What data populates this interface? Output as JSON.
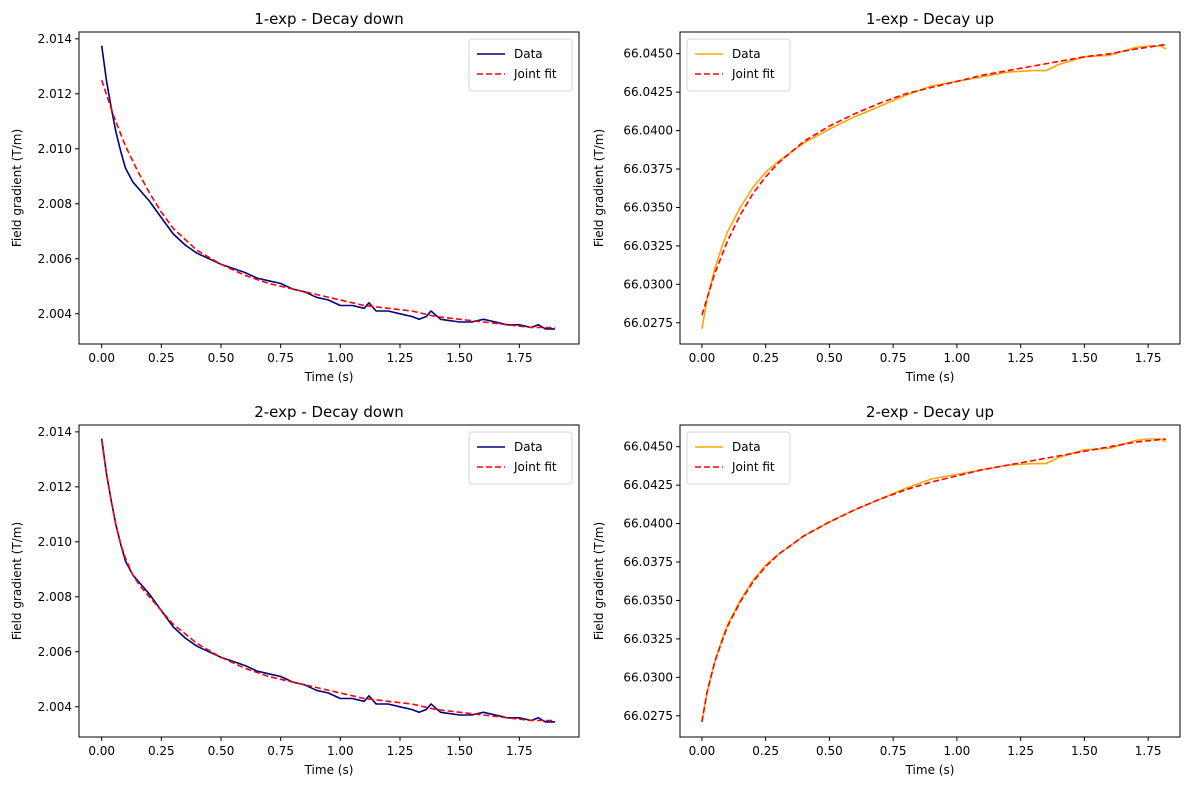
{
  "chart_data": [
    {
      "type": "line",
      "title": "1-exp - Decay down",
      "xlabel": "Time (s)",
      "ylabel": "Field gradient (T/m)",
      "xlim": [
        -0.095,
        2.0
      ],
      "ylim": [
        2.0029,
        2.01425
      ],
      "xticks": [
        "0.00",
        "0.25",
        "0.50",
        "0.75",
        "1.00",
        "1.25",
        "1.50",
        "1.75"
      ],
      "yticks": [
        "2.004",
        "2.006",
        "2.008",
        "2.010",
        "2.012",
        "2.014"
      ],
      "legend": "upper right",
      "series": [
        {
          "name": "Data",
          "color": "#000080",
          "style": "solid",
          "x": [
            0,
            0.02,
            0.04,
            0.06,
            0.08,
            0.1,
            0.13,
            0.16,
            0.2,
            0.25,
            0.3,
            0.35,
            0.4,
            0.45,
            0.5,
            0.55,
            0.6,
            0.65,
            0.7,
            0.75,
            0.8,
            0.85,
            0.9,
            0.95,
            1.0,
            1.05,
            1.1,
            1.12,
            1.15,
            1.2,
            1.25,
            1.3,
            1.33,
            1.36,
            1.38,
            1.42,
            1.5,
            1.55,
            1.6,
            1.65,
            1.7,
            1.75,
            1.8,
            1.83,
            1.86,
            1.9
          ],
          "y": [
            2.01375,
            2.0125,
            2.0115,
            2.0106,
            2.0099,
            2.0093,
            2.0088,
            2.0085,
            2.0081,
            2.0075,
            2.0069,
            2.0065,
            2.0062,
            2.006,
            2.0058,
            2.00565,
            2.0055,
            2.0053,
            2.0052,
            2.0051,
            2.0049,
            2.0048,
            2.0046,
            2.0045,
            2.0043,
            2.0043,
            2.0042,
            2.0044,
            2.0041,
            2.0041,
            2.004,
            2.0039,
            2.0038,
            2.0039,
            2.0041,
            2.0038,
            2.0037,
            2.0037,
            2.0038,
            2.0037,
            2.0036,
            2.0036,
            2.0035,
            2.0036,
            2.00345,
            2.00345
          ]
        },
        {
          "name": "Joint fit",
          "color": "#ff0000",
          "style": "dashed",
          "x": [
            0,
            0.05,
            0.1,
            0.15,
            0.2,
            0.25,
            0.3,
            0.4,
            0.5,
            0.6,
            0.7,
            0.8,
            0.9,
            1.0,
            1.1,
            1.2,
            1.3,
            1.4,
            1.5,
            1.6,
            1.7,
            1.8,
            1.9
          ],
          "y": [
            2.0125,
            2.0112,
            2.0101,
            2.0092,
            2.0084,
            2.0077,
            2.0071,
            2.0063,
            2.0058,
            2.0054,
            2.0051,
            2.0049,
            2.0047,
            2.0045,
            2.0043,
            2.0042,
            2.0041,
            2.0039,
            2.0038,
            2.0037,
            2.0036,
            2.0035,
            2.0035
          ]
        }
      ]
    },
    {
      "type": "line",
      "title": "1-exp - Decay up",
      "xlabel": "Time (s)",
      "ylabel": "Field gradient (T/m)",
      "xlim": [
        -0.086,
        1.875
      ],
      "ylim": [
        66.02612,
        66.04641
      ],
      "xticks": [
        "0.00",
        "0.25",
        "0.50",
        "0.75",
        "1.00",
        "1.25",
        "1.50",
        "1.75"
      ],
      "yticks": [
        "66.0275",
        "66.0300",
        "66.0325",
        "66.0350",
        "66.0375",
        "66.0400",
        "66.0425",
        "66.0450"
      ],
      "legend": "upper left",
      "series": [
        {
          "name": "Data",
          "color": "#ffa500",
          "style": "solid",
          "x": [
            0,
            0.02,
            0.05,
            0.08,
            0.1,
            0.15,
            0.2,
            0.25,
            0.3,
            0.35,
            0.4,
            0.5,
            0.6,
            0.7,
            0.8,
            0.9,
            1.0,
            1.1,
            1.2,
            1.3,
            1.35,
            1.4,
            1.5,
            1.6,
            1.7,
            1.75,
            1.8,
            1.82
          ],
          "y": [
            66.0271,
            66.029,
            66.031,
            66.0325,
            66.0334,
            66.035,
            66.0363,
            66.0373,
            66.038,
            66.0386,
            66.0392,
            66.0401,
            66.0409,
            66.0416,
            66.0423,
            66.0429,
            66.0432,
            66.0435,
            66.0438,
            66.0439,
            66.0439,
            66.0443,
            66.0448,
            66.0449,
            66.0454,
            66.0455,
            66.0455,
            66.0453
          ]
        },
        {
          "name": "Joint fit",
          "color": "#ff0000",
          "style": "dashed",
          "x": [
            0,
            0.05,
            0.1,
            0.15,
            0.2,
            0.25,
            0.3,
            0.4,
            0.5,
            0.6,
            0.7,
            0.8,
            0.9,
            1.0,
            1.1,
            1.2,
            1.3,
            1.4,
            1.5,
            1.6,
            1.7,
            1.82
          ],
          "y": [
            66.028,
            66.0307,
            66.0328,
            66.0345,
            66.0359,
            66.037,
            66.0379,
            66.0393,
            66.0403,
            66.0411,
            66.0418,
            66.0424,
            66.0428,
            66.0432,
            66.0436,
            66.0439,
            66.0442,
            66.0445,
            66.0448,
            66.045,
            66.0453,
            66.0456
          ]
        }
      ]
    },
    {
      "type": "line",
      "title": "2-exp - Decay down",
      "xlabel": "Time (s)",
      "ylabel": "Field gradient (T/m)",
      "xlim": [
        -0.095,
        2.0
      ],
      "ylim": [
        2.0029,
        2.01425
      ],
      "xticks": [
        "0.00",
        "0.25",
        "0.50",
        "0.75",
        "1.00",
        "1.25",
        "1.50",
        "1.75"
      ],
      "yticks": [
        "2.004",
        "2.006",
        "2.008",
        "2.010",
        "2.012",
        "2.014"
      ],
      "legend": "upper right",
      "series": [
        {
          "name": "Data",
          "color": "#000080",
          "style": "solid",
          "x": [
            0,
            0.02,
            0.04,
            0.06,
            0.08,
            0.1,
            0.13,
            0.16,
            0.2,
            0.25,
            0.3,
            0.35,
            0.4,
            0.45,
            0.5,
            0.55,
            0.6,
            0.65,
            0.7,
            0.75,
            0.8,
            0.85,
            0.9,
            0.95,
            1.0,
            1.05,
            1.1,
            1.12,
            1.15,
            1.2,
            1.25,
            1.3,
            1.33,
            1.36,
            1.38,
            1.42,
            1.5,
            1.55,
            1.6,
            1.65,
            1.7,
            1.75,
            1.8,
            1.83,
            1.86,
            1.9
          ],
          "y": [
            2.01375,
            2.0125,
            2.0115,
            2.0106,
            2.0099,
            2.0093,
            2.0088,
            2.0085,
            2.0081,
            2.0075,
            2.0069,
            2.0065,
            2.0062,
            2.006,
            2.0058,
            2.00565,
            2.0055,
            2.0053,
            2.0052,
            2.0051,
            2.0049,
            2.0048,
            2.0046,
            2.0045,
            2.0043,
            2.0043,
            2.0042,
            2.0044,
            2.0041,
            2.0041,
            2.004,
            2.0039,
            2.0038,
            2.0039,
            2.0041,
            2.0038,
            2.0037,
            2.0037,
            2.0038,
            2.0037,
            2.0036,
            2.0036,
            2.0035,
            2.0036,
            2.00345,
            2.00345
          ]
        },
        {
          "name": "Joint fit",
          "color": "#ff0000",
          "style": "dashed",
          "x": [
            0,
            0.02,
            0.04,
            0.06,
            0.08,
            0.1,
            0.13,
            0.16,
            0.2,
            0.25,
            0.3,
            0.4,
            0.5,
            0.6,
            0.7,
            0.8,
            0.9,
            1.0,
            1.1,
            1.2,
            1.3,
            1.4,
            1.5,
            1.6,
            1.7,
            1.8,
            1.9
          ],
          "y": [
            2.0137,
            2.0125,
            2.0115,
            2.0106,
            2.0099,
            2.0094,
            2.0088,
            2.0084,
            2.008,
            2.0075,
            2.007,
            2.0063,
            2.0058,
            2.0054,
            2.0051,
            2.0049,
            2.0047,
            2.0045,
            2.0043,
            2.0042,
            2.0041,
            2.0039,
            2.0038,
            2.0037,
            2.0036,
            2.0035,
            2.0035
          ]
        }
      ]
    },
    {
      "type": "line",
      "title": "2-exp - Decay up",
      "xlabel": "Time (s)",
      "ylabel": "Field gradient (T/m)",
      "xlim": [
        -0.086,
        1.875
      ],
      "ylim": [
        66.02612,
        66.04641
      ],
      "xticks": [
        "0.00",
        "0.25",
        "0.50",
        "0.75",
        "1.00",
        "1.25",
        "1.50",
        "1.75"
      ],
      "yticks": [
        "66.0275",
        "66.0300",
        "66.0325",
        "66.0350",
        "66.0375",
        "66.0400",
        "66.0425",
        "66.0450"
      ],
      "legend": "upper left",
      "series": [
        {
          "name": "Data",
          "color": "#ffa500",
          "style": "solid",
          "x": [
            0,
            0.02,
            0.05,
            0.08,
            0.1,
            0.15,
            0.2,
            0.25,
            0.3,
            0.35,
            0.4,
            0.5,
            0.6,
            0.7,
            0.8,
            0.9,
            1.0,
            1.1,
            1.2,
            1.3,
            1.35,
            1.4,
            1.5,
            1.6,
            1.7,
            1.75,
            1.8,
            1.82
          ],
          "y": [
            66.0271,
            66.029,
            66.031,
            66.0325,
            66.0334,
            66.035,
            66.0363,
            66.0373,
            66.038,
            66.0386,
            66.0392,
            66.0401,
            66.0409,
            66.0416,
            66.0423,
            66.0429,
            66.0432,
            66.0435,
            66.0438,
            66.0439,
            66.0439,
            66.0443,
            66.0448,
            66.0449,
            66.0454,
            66.0455,
            66.0455,
            66.0453
          ]
        },
        {
          "name": "Joint fit",
          "color": "#ff0000",
          "style": "dashed",
          "x": [
            0,
            0.02,
            0.05,
            0.08,
            0.1,
            0.15,
            0.2,
            0.25,
            0.3,
            0.4,
            0.5,
            0.6,
            0.7,
            0.8,
            0.9,
            1.0,
            1.1,
            1.2,
            1.3,
            1.4,
            1.5,
            1.6,
            1.7,
            1.82
          ],
          "y": [
            66.0271,
            66.029,
            66.031,
            66.0324,
            66.0333,
            66.0349,
            66.0362,
            66.0372,
            66.038,
            66.0392,
            66.0401,
            66.0409,
            66.0416,
            66.0422,
            66.0427,
            66.0431,
            66.0435,
            66.0438,
            66.0441,
            66.0444,
            66.0447,
            66.045,
            66.0453,
            66.0455
          ]
        }
      ]
    }
  ]
}
